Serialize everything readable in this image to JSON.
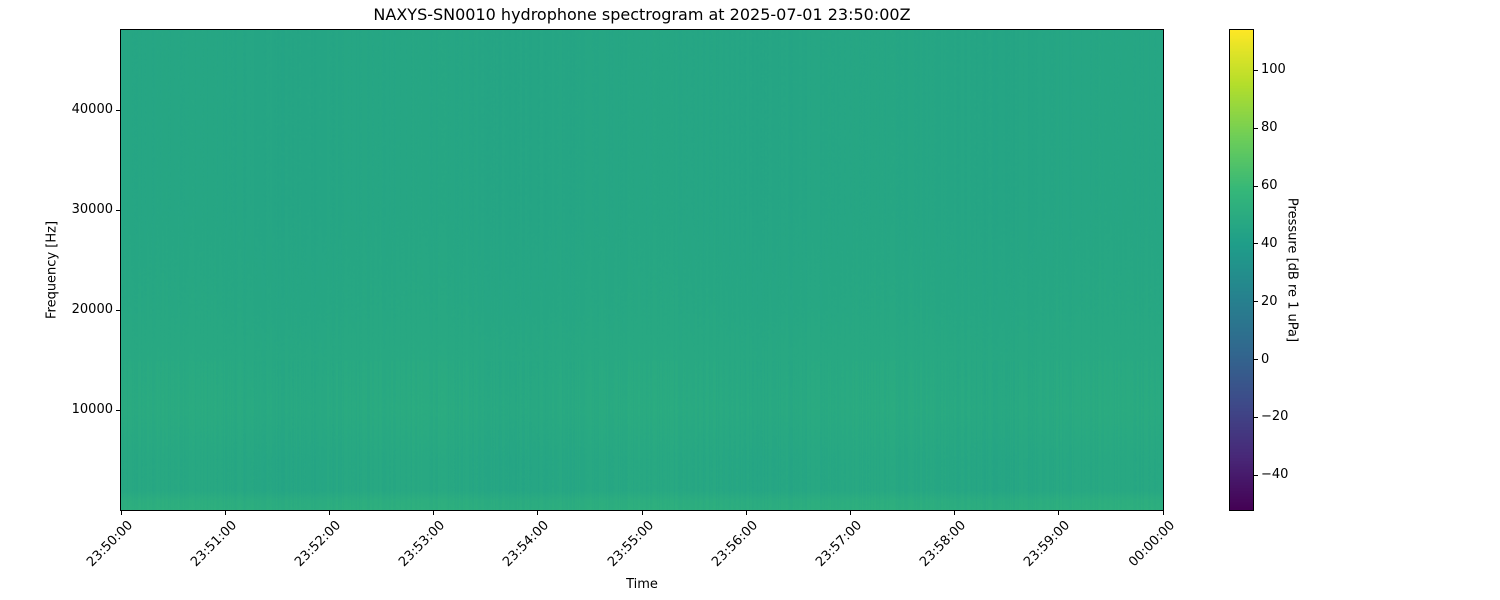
{
  "chart_data": {
    "type": "heatmap",
    "title": "NAXYS-SN0010 hydrophone spectrogram at 2025-07-01 23:50:00Z",
    "xlabel": "Time",
    "ylabel": "Frequency [Hz]",
    "colorbar_label": "Pressure [dB re 1 uPa]",
    "colormap": "viridis",
    "x_ticks": [
      "23:50:00",
      "23:51:00",
      "23:52:00",
      "23:53:00",
      "23:54:00",
      "23:55:00",
      "23:56:00",
      "23:57:00",
      "23:58:00",
      "23:59:00",
      "00:00:00"
    ],
    "xlim": [
      "23:50:00",
      "00:00:00"
    ],
    "y_ticks": [
      10000,
      20000,
      30000,
      40000
    ],
    "ylim": [
      0,
      48000
    ],
    "colorbar_ticks": [
      -40,
      -20,
      0,
      20,
      40,
      60,
      80,
      100
    ],
    "clim": [
      -52,
      114
    ],
    "grid": false,
    "level_profile": {
      "frequency_hz": [
        0,
        1000,
        2000,
        5000,
        10000,
        15000,
        20000,
        30000,
        40000,
        48000
      ],
      "pressure_db": [
        52,
        51,
        47,
        47,
        49,
        48,
        47,
        46,
        46,
        46
      ]
    }
  }
}
